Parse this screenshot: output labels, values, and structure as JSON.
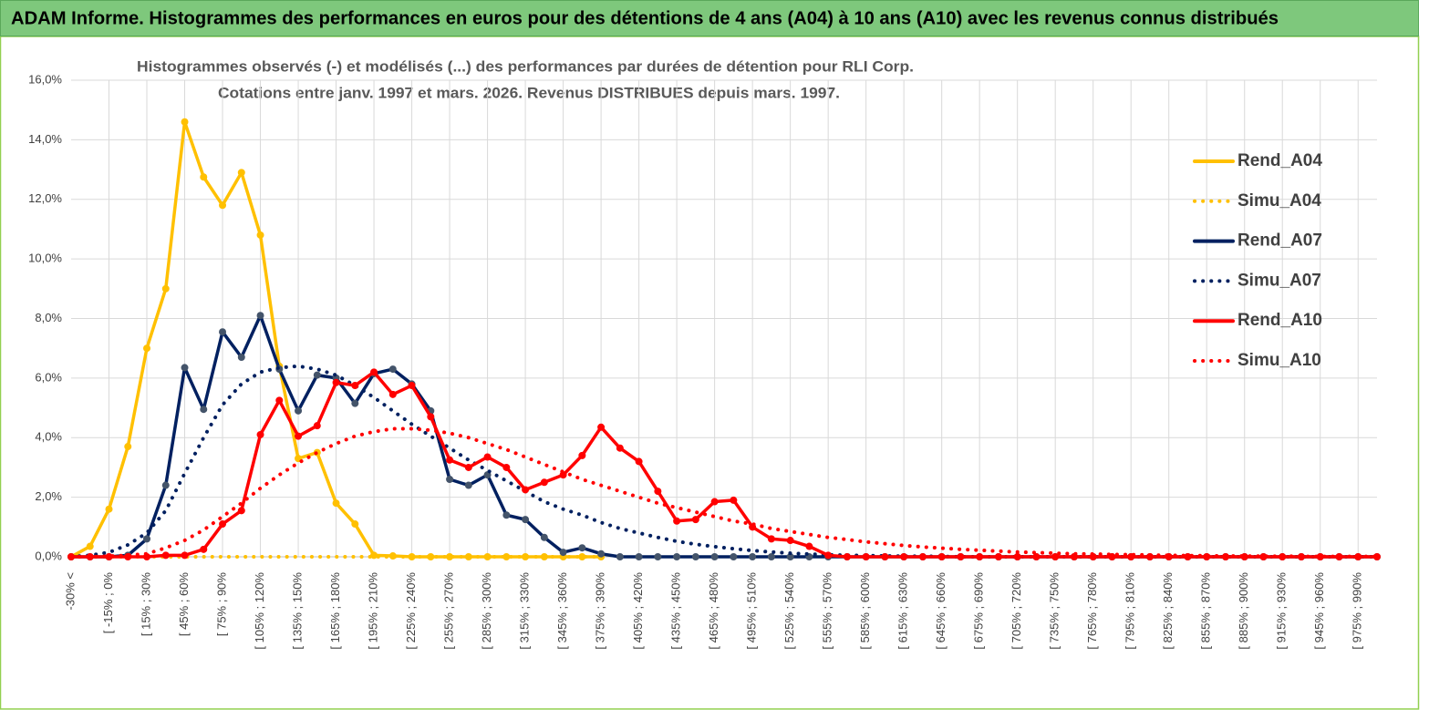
{
  "banner": {
    "title": "ADAM Informe. Histogrammes des performances en euros pour des détentions de 4 ans (A04) à 10 ans (A10) avec les revenus connus distribués"
  },
  "chart_data": {
    "type": "line",
    "title": "Histogrammes observés (-)  et modélisés (...) des performances par durées de détention pour RLI Corp.",
    "subtitle": "Cotations entre janv. 1997 et mars. 2026. Revenus DISTRIBUES depuis mars. 1997.",
    "categories": [
      "-30% <",
      null,
      "[ -15% ; 0%",
      null,
      "[ 15% ; 30%",
      null,
      "[ 45% ; 60%",
      null,
      "[ 75% ; 90%",
      null,
      "[ 105% ; 120%",
      null,
      "[ 135% ; 150%",
      null,
      "[ 165% ; 180%",
      null,
      "[ 195% ; 210%",
      null,
      "[ 225% ; 240%",
      null,
      "[ 255% ; 270%",
      null,
      "[ 285% ; 300%",
      null,
      "[ 315% ; 330%",
      null,
      "[ 345% ; 360%",
      null,
      "[ 375% ; 390%",
      null,
      "[ 405% ; 420%",
      null,
      "[ 435% ; 450%",
      null,
      "[ 465% ; 480%",
      null,
      "[ 495% ; 510%",
      null,
      "[ 525% ; 540%",
      null,
      "[ 555% ; 570%",
      null,
      "[ 585% ; 600%",
      null,
      "[ 615% ; 630%",
      null,
      "[ 645% ; 660%",
      null,
      "[ 675% ; 690%",
      null,
      "[ 705% ; 720%",
      null,
      "[ 735% ; 750%",
      null,
      "[ 765% ; 780%",
      null,
      "[ 795% ; 810%",
      null,
      "[ 825% ; 840%",
      null,
      "[ 855% ; 870%",
      null,
      "[ 885% ; 900%",
      null,
      "[ 915% ; 930%",
      null,
      "[ 945% ; 960%",
      null,
      "[ 975% ; 990%",
      null
    ],
    "series": [
      {
        "name": "Rend_A04",
        "color": "#ffc000",
        "marker_color": "#ffc000",
        "line_style": "solid",
        "markers": true,
        "values": [
          0,
          0.35,
          1.6,
          3.7,
          7.0,
          9.0,
          14.6,
          12.75,
          11.8,
          12.9,
          10.8,
          6.4,
          3.3,
          3.5,
          1.8,
          1.1,
          0.05,
          0.03,
          0,
          0,
          0,
          0,
          0,
          0,
          0,
          0,
          0,
          0,
          0,
          null,
          null,
          null,
          null,
          null,
          null,
          null,
          null,
          null,
          null,
          null,
          null,
          null,
          null,
          null,
          null,
          null,
          null,
          null,
          null,
          null,
          null,
          null,
          null,
          null,
          null,
          null,
          null,
          null,
          null,
          null,
          null,
          null,
          null,
          null,
          null,
          null,
          null,
          null,
          null,
          null
        ]
      },
      {
        "name": "Simu_A04",
        "color": "#ffc000",
        "line_style": "dotted",
        "markers": false,
        "values": [
          0,
          0,
          0,
          0,
          0,
          0,
          0,
          0,
          0,
          0,
          0,
          0,
          0,
          0,
          0,
          0,
          0,
          0,
          0,
          0,
          0,
          0,
          0,
          0,
          0,
          0,
          0,
          0,
          0,
          null,
          null,
          null,
          null,
          null,
          null,
          null,
          null,
          null,
          null,
          null,
          null,
          null,
          null,
          null,
          null,
          null,
          null,
          null,
          null,
          null,
          null,
          null,
          null,
          null,
          null,
          null,
          null,
          null,
          null,
          null,
          null,
          null,
          null,
          null,
          null,
          null,
          null,
          null,
          null,
          null
        ]
      },
      {
        "name": "Rend_A07",
        "color": "#002060",
        "marker_color": "#44546a",
        "line_style": "solid",
        "markers": true,
        "values": [
          0,
          0,
          0,
          0.05,
          0.6,
          2.4,
          6.35,
          4.95,
          7.55,
          6.7,
          8.1,
          6.3,
          4.9,
          6.1,
          6.0,
          5.15,
          6.15,
          6.3,
          5.8,
          4.9,
          2.6,
          2.4,
          2.75,
          1.4,
          1.25,
          0.65,
          0.15,
          0.3,
          0.1,
          0,
          0,
          0,
          0,
          0,
          0,
          0,
          0,
          0,
          0,
          0,
          0,
          0,
          0,
          0,
          0,
          0,
          0,
          0,
          0,
          0,
          0,
          0,
          0,
          0,
          0,
          0,
          0,
          0,
          0,
          0,
          0,
          0,
          0,
          0,
          0,
          0,
          0,
          0,
          0,
          0
        ]
      },
      {
        "name": "Simu_A07",
        "color": "#002060",
        "line_style": "dotted",
        "markers": false,
        "values": [
          0,
          0.05,
          0.15,
          0.4,
          0.8,
          1.55,
          2.8,
          4.0,
          5.1,
          5.8,
          6.2,
          6.35,
          6.4,
          6.3,
          6.1,
          5.75,
          5.35,
          4.9,
          4.45,
          4.05,
          3.65,
          3.25,
          2.9,
          2.55,
          2.2,
          1.85,
          1.6,
          1.4,
          1.15,
          0.95,
          0.8,
          0.65,
          0.52,
          0.42,
          0.34,
          0.27,
          0.21,
          0.16,
          0.12,
          0.09,
          0.07,
          0.05,
          0.04,
          0.03,
          0.02,
          0.02,
          0.01,
          0,
          0,
          0,
          0,
          0,
          0,
          0,
          0,
          0,
          0,
          0,
          0,
          0,
          0,
          0,
          0,
          0,
          0,
          0,
          0,
          0,
          0,
          0
        ]
      },
      {
        "name": "Rend_A10",
        "color": "#ff0000",
        "marker_color": "#ff0000",
        "line_style": "solid",
        "markers": true,
        "values": [
          0,
          0,
          0,
          0,
          0,
          0.05,
          0.05,
          0.25,
          1.1,
          1.55,
          4.1,
          5.25,
          4.05,
          4.4,
          5.85,
          5.75,
          6.2,
          5.45,
          5.75,
          4.7,
          3.25,
          3.0,
          3.35,
          3.0,
          2.25,
          2.5,
          2.75,
          3.4,
          4.35,
          3.65,
          3.2,
          2.2,
          1.2,
          1.25,
          1.85,
          1.9,
          1.0,
          0.6,
          0.55,
          0.35,
          0.05,
          0,
          0,
          0,
          0,
          0,
          0,
          0,
          0,
          0,
          0,
          0,
          0,
          0,
          0,
          0,
          0,
          0,
          0,
          0,
          0,
          0,
          0,
          0,
          0,
          0,
          0,
          0,
          0,
          0
        ]
      },
      {
        "name": "Simu_A10",
        "color": "#ff0000",
        "line_style": "dotted",
        "markers": false,
        "values": [
          0,
          0,
          0.02,
          0.05,
          0.1,
          0.3,
          0.55,
          0.9,
          1.35,
          1.8,
          2.3,
          2.75,
          3.15,
          3.5,
          3.8,
          4.05,
          4.2,
          4.3,
          4.3,
          4.25,
          4.15,
          4.0,
          3.8,
          3.6,
          3.35,
          3.1,
          2.85,
          2.6,
          2.4,
          2.2,
          2.0,
          1.8,
          1.65,
          1.5,
          1.35,
          1.2,
          1.1,
          0.95,
          0.85,
          0.75,
          0.65,
          0.58,
          0.5,
          0.44,
          0.38,
          0.33,
          0.29,
          0.25,
          0.22,
          0.19,
          0.16,
          0.14,
          0.12,
          0.1,
          0.09,
          0.08,
          0.07,
          0.06,
          0.05,
          0.04,
          0.035,
          0.03,
          0.025,
          0.02,
          0.02,
          0.015,
          0.01,
          0.01,
          0.01,
          0.01
        ]
      }
    ],
    "ylim": [
      0,
      16
    ],
    "yticks": [
      {
        "value": 0,
        "label": "0,0%"
      },
      {
        "value": 2,
        "label": "2,0%"
      },
      {
        "value": 4,
        "label": "4,0%"
      },
      {
        "value": 6,
        "label": "6,0%"
      },
      {
        "value": 8,
        "label": "8,0%"
      },
      {
        "value": 10,
        "label": "10,0%"
      },
      {
        "value": 12,
        "label": "12,0%"
      },
      {
        "value": 14,
        "label": "14,0%"
      },
      {
        "value": 16,
        "label": "16,0%"
      }
    ],
    "grid": true,
    "legend": "right"
  }
}
